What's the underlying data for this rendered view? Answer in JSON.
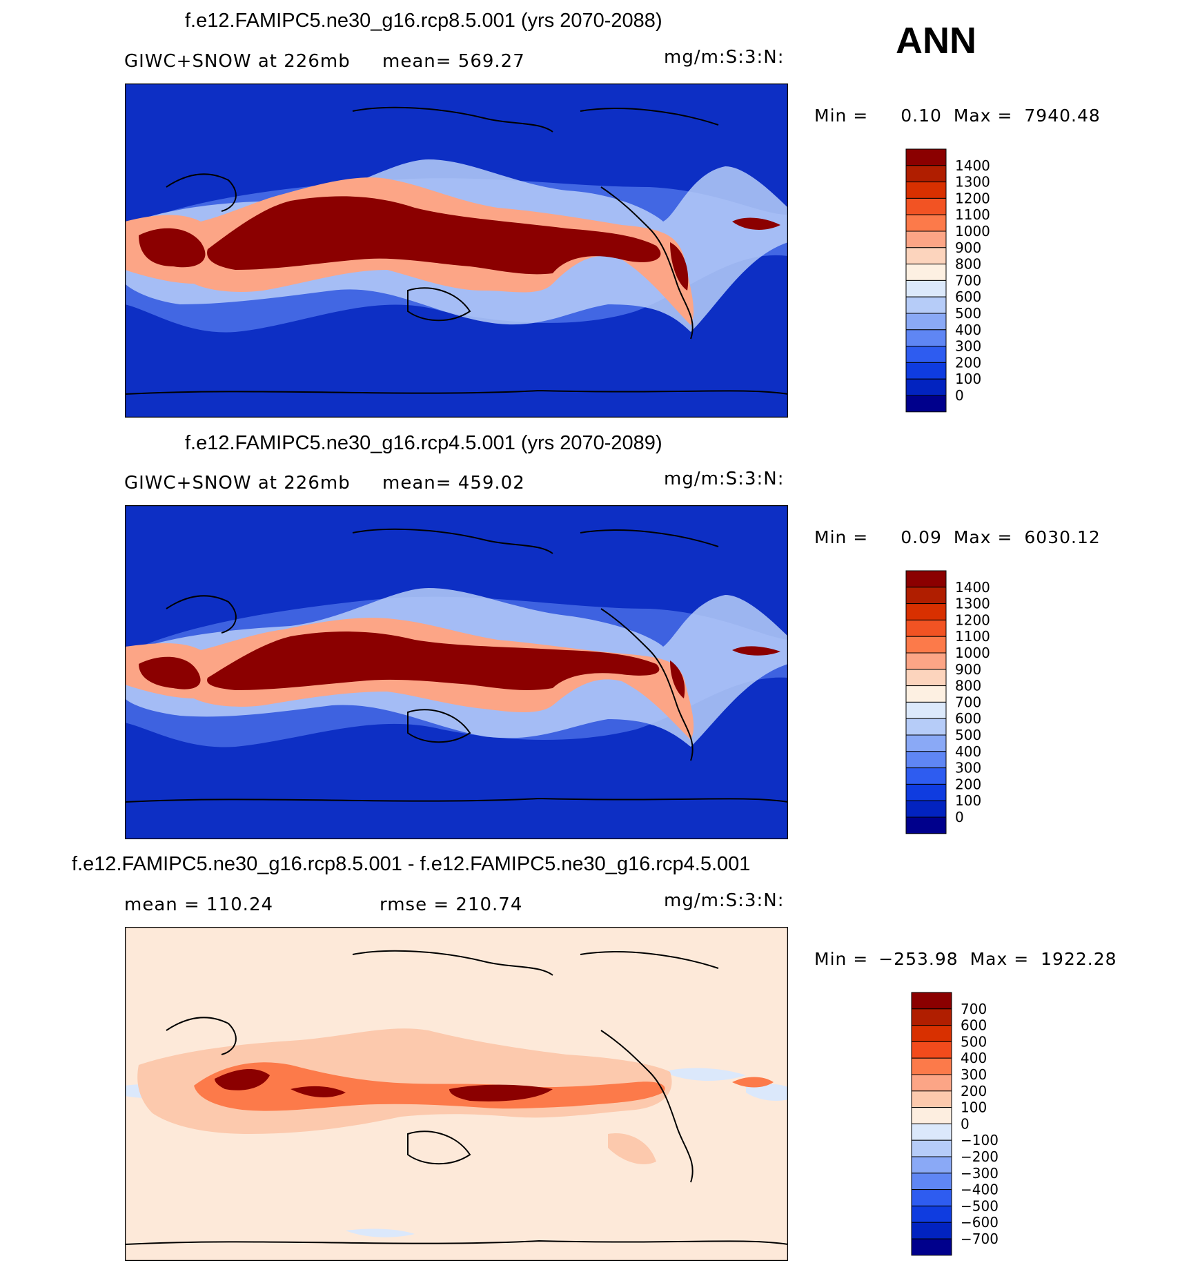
{
  "season": "ANN",
  "units": "mg/m:S:3:N:",
  "panels": [
    {
      "title": "f.e12.FAMIPC5.ne30_g16.rcp8.5.001 (yrs 2070-2088)",
      "subtitle_left": "GIWC+SNOW at 226mb",
      "subtitle_mid": "mean= 569.27",
      "min_label": "Min =",
      "min_value": "0.10",
      "max_label": "Max =",
      "max_value": "7940.48",
      "colorbar": {
        "labels": [
          "1400",
          "1300",
          "1200",
          "1100",
          "1000",
          "900",
          "800",
          "700",
          "600",
          "500",
          "400",
          "300",
          "200",
          "100",
          "0"
        ],
        "colors": [
          "#8b0000",
          "#b01e00",
          "#d83000",
          "#f25323",
          "#fc7a4a",
          "#fca586",
          "#fcd4bd",
          "#fdf0e2",
          "#dce9fb",
          "#b6ccf8",
          "#8aa9f6",
          "#5f86f4",
          "#2e5cf0",
          "#0f3ce0",
          "#0223c0",
          "#00008c"
        ]
      },
      "map_fill": "#0d2fc4"
    },
    {
      "title": "f.e12.FAMIPC5.ne30_g16.rcp4.5.001 (yrs 2070-2089)",
      "subtitle_left": "GIWC+SNOW at 226mb",
      "subtitle_mid": "mean= 459.02",
      "min_label": "Min =",
      "min_value": "0.09",
      "max_label": "Max =",
      "max_value": "6030.12",
      "colorbar": {
        "labels": [
          "1400",
          "1300",
          "1200",
          "1100",
          "1000",
          "900",
          "800",
          "700",
          "600",
          "500",
          "400",
          "300",
          "200",
          "100",
          "0"
        ],
        "colors": [
          "#8b0000",
          "#b01e00",
          "#d83000",
          "#f25323",
          "#fc7a4a",
          "#fca586",
          "#fcd4bd",
          "#fdf0e2",
          "#dce9fb",
          "#b6ccf8",
          "#8aa9f6",
          "#5f86f4",
          "#2e5cf0",
          "#0f3ce0",
          "#0223c0",
          "#00008c"
        ]
      },
      "map_fill": "#0d2fc4"
    },
    {
      "title": "f.e12.FAMIPC5.ne30_g16.rcp8.5.001 - f.e12.FAMIPC5.ne30_g16.rcp4.5.001",
      "subtitle_left": "mean = 110.24",
      "subtitle_mid": "rmse = 210.74",
      "min_label": "Min =",
      "min_value": "−253.98",
      "max_label": "Max =",
      "max_value": "1922.28",
      "colorbar": {
        "labels": [
          "700",
          "600",
          "500",
          "400",
          "300",
          "200",
          "100",
          "0",
          "−100",
          "−200",
          "−300",
          "−400",
          "−500",
          "−600",
          "−700"
        ],
        "colors": [
          "#8b0000",
          "#b01e00",
          "#d83000",
          "#f24b1c",
          "#fc7a4a",
          "#fca586",
          "#fcc9ad",
          "#fdeee0",
          "#dbe8fb",
          "#b6ccf8",
          "#8aa9f6",
          "#5f86f4",
          "#2e5cf0",
          "#0f3ce0",
          "#0223c0",
          "#00008c"
        ]
      },
      "map_fill": "#fde9d9"
    }
  ]
}
